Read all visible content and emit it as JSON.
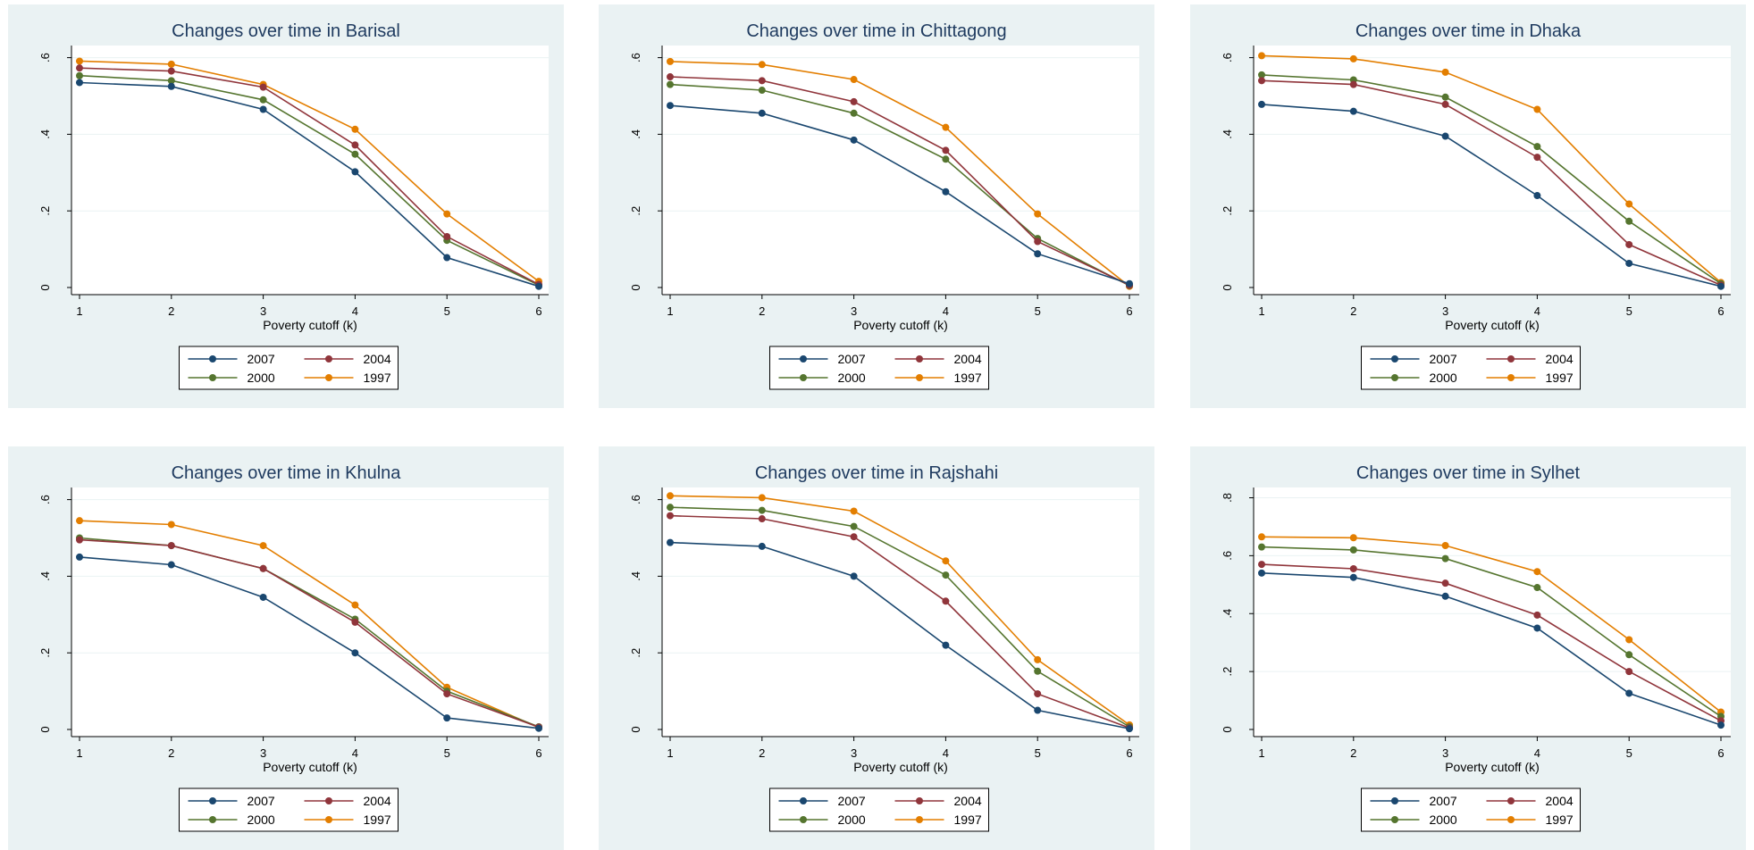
{
  "chart_data": [
    {
      "type": "line",
      "title": "Changes over time in Barisal",
      "xlabel": "Poverty cutoff (k)",
      "ylabel": "",
      "x": [
        1,
        2,
        3,
        4,
        5,
        6
      ],
      "xlim": [
        1,
        6
      ],
      "ylim": [
        0,
        0.62
      ],
      "yticks": [
        0,
        0.2,
        0.4,
        0.6
      ],
      "ytick_labels": [
        "0",
        ".2",
        ".4",
        ".6"
      ],
      "grid": true,
      "legend": "bottom",
      "series": [
        {
          "name": "2007",
          "color": "#1a476f",
          "values": [
            0.535,
            0.525,
            0.465,
            0.302,
            0.078,
            0.003
          ]
        },
        {
          "name": "2004",
          "color": "#90353b",
          "values": [
            0.573,
            0.565,
            0.523,
            0.372,
            0.133,
            0.008
          ]
        },
        {
          "name": "2000",
          "color": "#55752f",
          "values": [
            0.553,
            0.54,
            0.49,
            0.348,
            0.123,
            0.006
          ]
        },
        {
          "name": "1997",
          "color": "#e37e00",
          "values": [
            0.591,
            0.583,
            0.53,
            0.413,
            0.192,
            0.016
          ]
        }
      ]
    },
    {
      "type": "line",
      "title": "Changes over time in Chittagong",
      "xlabel": "Poverty cutoff (k)",
      "ylabel": "",
      "x": [
        1,
        2,
        3,
        4,
        5,
        6
      ],
      "xlim": [
        1,
        6
      ],
      "ylim": [
        0,
        0.62
      ],
      "yticks": [
        0,
        0.2,
        0.4,
        0.6
      ],
      "ytick_labels": [
        "0",
        ".2",
        ".4",
        ".6"
      ],
      "grid": true,
      "legend": "bottom",
      "series": [
        {
          "name": "2007",
          "color": "#1a476f",
          "values": [
            0.475,
            0.455,
            0.385,
            0.25,
            0.088,
            0.01
          ]
        },
        {
          "name": "2004",
          "color": "#90353b",
          "values": [
            0.55,
            0.54,
            0.485,
            0.358,
            0.12,
            0.006
          ]
        },
        {
          "name": "2000",
          "color": "#55752f",
          "values": [
            0.53,
            0.515,
            0.455,
            0.335,
            0.128,
            0.005
          ]
        },
        {
          "name": "1997",
          "color": "#e37e00",
          "values": [
            0.59,
            0.582,
            0.543,
            0.418,
            0.192,
            0.003
          ]
        }
      ]
    },
    {
      "type": "line",
      "title": "Changes over time in Dhaka",
      "xlabel": "Poverty cutoff (k)",
      "ylabel": "",
      "x": [
        1,
        2,
        3,
        4,
        5,
        6
      ],
      "xlim": [
        1,
        6
      ],
      "ylim": [
        0,
        0.62
      ],
      "yticks": [
        0,
        0.2,
        0.4,
        0.6
      ],
      "ytick_labels": [
        "0",
        ".2",
        ".4",
        ".6"
      ],
      "grid": true,
      "legend": "bottom",
      "series": [
        {
          "name": "2007",
          "color": "#1a476f",
          "values": [
            0.478,
            0.46,
            0.395,
            0.24,
            0.063,
            0.003
          ]
        },
        {
          "name": "2004",
          "color": "#90353b",
          "values": [
            0.54,
            0.53,
            0.478,
            0.34,
            0.112,
            0.006
          ]
        },
        {
          "name": "2000",
          "color": "#55752f",
          "values": [
            0.555,
            0.542,
            0.497,
            0.368,
            0.173,
            0.01
          ]
        },
        {
          "name": "1997",
          "color": "#e37e00",
          "values": [
            0.605,
            0.597,
            0.562,
            0.465,
            0.218,
            0.013
          ]
        }
      ]
    },
    {
      "type": "line",
      "title": "Changes over time in Khulna",
      "xlabel": "Poverty cutoff (k)",
      "ylabel": "",
      "x": [
        1,
        2,
        3,
        4,
        5,
        6
      ],
      "xlim": [
        1,
        6
      ],
      "ylim": [
        0,
        0.62
      ],
      "yticks": [
        0,
        0.2,
        0.4,
        0.6
      ],
      "ytick_labels": [
        "0",
        ".2",
        ".4",
        ".6"
      ],
      "grid": true,
      "legend": "bottom",
      "series": [
        {
          "name": "2007",
          "color": "#1a476f",
          "values": [
            0.45,
            0.43,
            0.345,
            0.2,
            0.03,
            0.003
          ]
        },
        {
          "name": "2004",
          "color": "#90353b",
          "values": [
            0.495,
            0.48,
            0.42,
            0.28,
            0.093,
            0.006
          ]
        },
        {
          "name": "2000",
          "color": "#55752f",
          "values": [
            0.5,
            0.48,
            0.42,
            0.288,
            0.1,
            0.007
          ]
        },
        {
          "name": "1997",
          "color": "#e37e00",
          "values": [
            0.545,
            0.535,
            0.48,
            0.325,
            0.11,
            0.005
          ]
        }
      ]
    },
    {
      "type": "line",
      "title": "Changes over time in Rajshahi",
      "xlabel": "Poverty cutoff (k)",
      "ylabel": "",
      "x": [
        1,
        2,
        3,
        4,
        5,
        6
      ],
      "xlim": [
        1,
        6
      ],
      "ylim": [
        0,
        0.62
      ],
      "yticks": [
        0,
        0.2,
        0.4,
        0.6
      ],
      "ytick_labels": [
        "0",
        ".2",
        ".4",
        ".6"
      ],
      "grid": true,
      "legend": "bottom",
      "series": [
        {
          "name": "2007",
          "color": "#1a476f",
          "values": [
            0.488,
            0.478,
            0.4,
            0.22,
            0.05,
            0.002
          ]
        },
        {
          "name": "2004",
          "color": "#90353b",
          "values": [
            0.558,
            0.55,
            0.503,
            0.335,
            0.093,
            0.004
          ]
        },
        {
          "name": "2000",
          "color": "#55752f",
          "values": [
            0.58,
            0.572,
            0.53,
            0.403,
            0.152,
            0.007
          ]
        },
        {
          "name": "1997",
          "color": "#e37e00",
          "values": [
            0.61,
            0.605,
            0.57,
            0.44,
            0.182,
            0.012
          ]
        }
      ]
    },
    {
      "type": "line",
      "title": "Changes over time in Sylhet",
      "xlabel": "Poverty cutoff (k)",
      "ylabel": "",
      "x": [
        1,
        2,
        3,
        4,
        5,
        6
      ],
      "xlim": [
        1,
        6
      ],
      "ylim": [
        0,
        0.82
      ],
      "yticks": [
        0,
        0.2,
        0.4,
        0.6,
        0.8
      ],
      "ytick_labels": [
        "0",
        ".2",
        ".4",
        ".6",
        ".8"
      ],
      "grid": true,
      "legend": "bottom",
      "series": [
        {
          "name": "2007",
          "color": "#1a476f",
          "values": [
            0.54,
            0.525,
            0.46,
            0.35,
            0.125,
            0.015
          ]
        },
        {
          "name": "2004",
          "color": "#90353b",
          "values": [
            0.57,
            0.555,
            0.505,
            0.395,
            0.2,
            0.03
          ]
        },
        {
          "name": "2000",
          "color": "#55752f",
          "values": [
            0.63,
            0.62,
            0.59,
            0.49,
            0.258,
            0.045
          ]
        },
        {
          "name": "1997",
          "color": "#e37e00",
          "values": [
            0.665,
            0.662,
            0.635,
            0.545,
            0.31,
            0.06
          ]
        }
      ]
    }
  ]
}
